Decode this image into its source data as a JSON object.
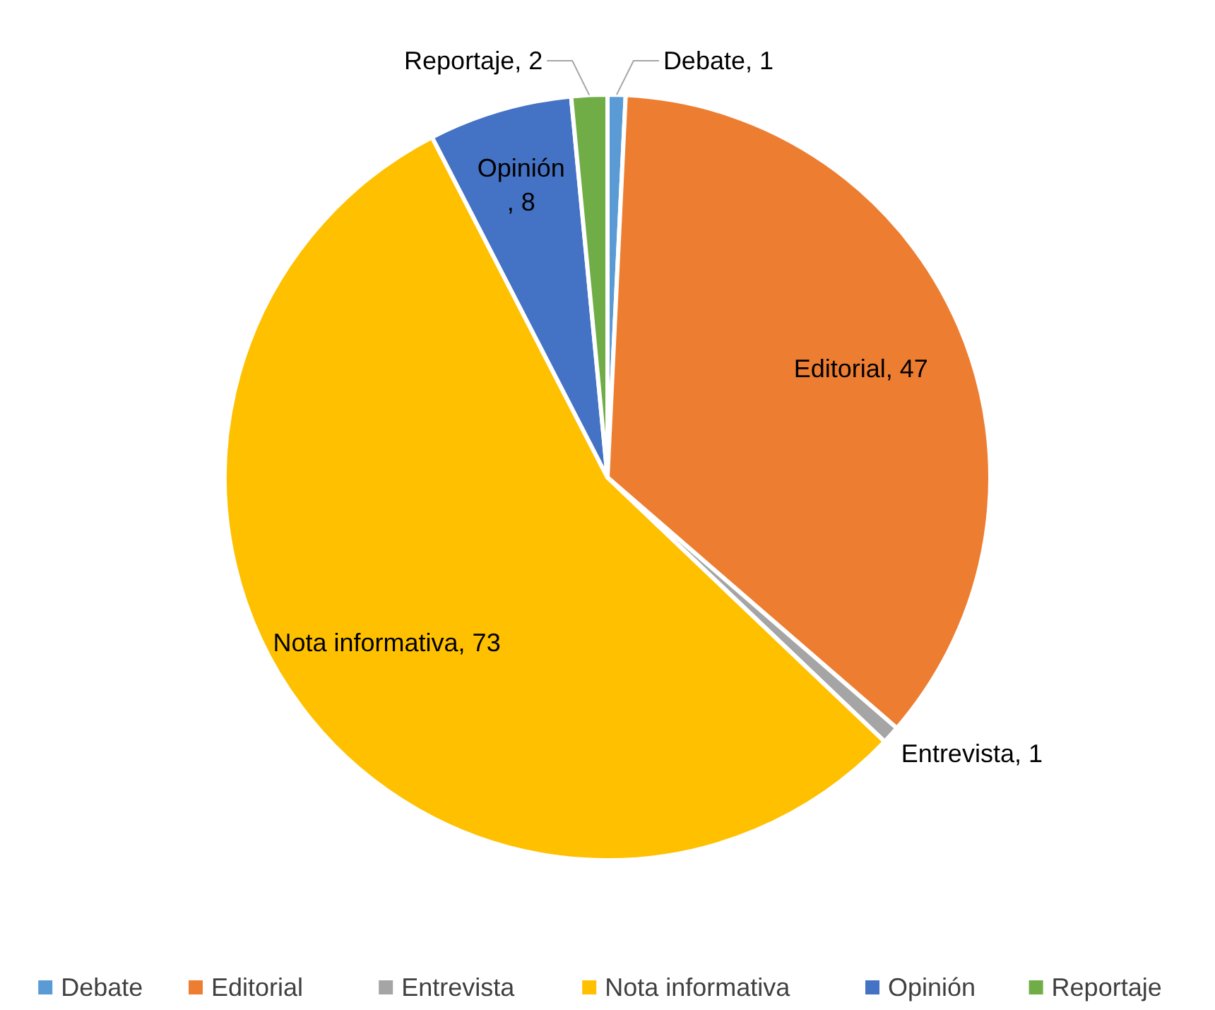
{
  "chart_data": {
    "type": "pie",
    "categories": [
      "Debate",
      "Editorial",
      "Entrevista",
      "Nota informativa",
      "Opinión",
      "Reportaje"
    ],
    "values": [
      1,
      47,
      1,
      73,
      8,
      2
    ],
    "colors": [
      "#5b9bd5",
      "#ed7d31",
      "#a5a5a5",
      "#ffc000",
      "#4472c4",
      "#70ad47"
    ],
    "value_labels": [
      "Debate, 1",
      "Editorial, 47",
      "Entrevista, 1",
      "Nota informativa, 73",
      "Opinión, 8",
      "Reportaje, 2"
    ],
    "legend": "bottom"
  }
}
